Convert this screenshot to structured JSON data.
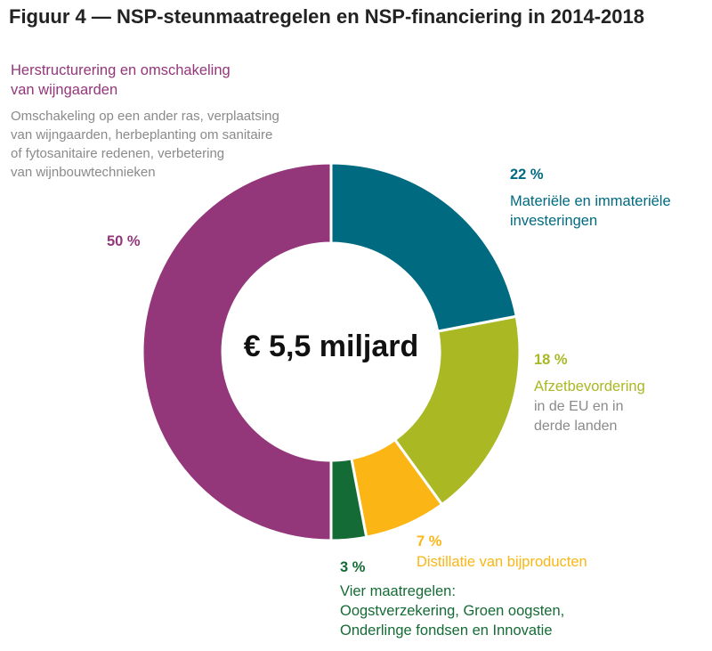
{
  "title": "Figuur 4 — NSP-steunmaatregelen en NSP-financiering in 2014-2018",
  "center_label": "€ 5,5 miljard",
  "colors": {
    "teal": "#006a80",
    "lime": "#a9b823",
    "orange": "#fbb616",
    "darkgreen": "#156b35",
    "purple": "#93367a",
    "grey": "#8a8a8a"
  },
  "chart_data": {
    "type": "pie",
    "donut": true,
    "title": "Figuur 4 — NSP-steunmaatregelen en NSP-financiering in 2014-2018",
    "total_label": "€ 5,5 miljard",
    "slices": [
      {
        "pct_label": "22 %",
        "value": 22,
        "name": "Materiële en immateriële investeringen",
        "name_lines": [
          "Materiële en immateriële",
          "investeringen"
        ],
        "color": "#006a80"
      },
      {
        "pct_label": "18 %",
        "value": 18,
        "name": "Afzetbevordering in de EU en in derde landen",
        "name_lines": [
          "Afzetbevordering"
        ],
        "desc_lines": [
          "in de EU en in",
          "derde landen"
        ],
        "color": "#a9b823"
      },
      {
        "pct_label": "7 %",
        "value": 7,
        "name": "Distillatie van bijproducten",
        "name_lines": [
          "Distillatie van bijproducten"
        ],
        "color": "#fbb616"
      },
      {
        "pct_label": "3 %",
        "value": 3,
        "name": "Vier maatregelen: Oogstverzekering, Groen oogsten, Onderlinge fondsen en Innovatie",
        "name_lines": [
          "Vier maatregelen:",
          "Oogstverzekering, Groen oogsten,",
          "Onderlinge fondsen en Innovatie"
        ],
        "color": "#156b35"
      },
      {
        "pct_label": "50 %",
        "value": 50,
        "name": "Herstructurering en omschakeling van wijngaarden",
        "name_lines": [
          "Herstructurering en omschakeling",
          "van wijngaarden"
        ],
        "desc_lines": [
          "Omschakeling op een ander ras, verplaatsing",
          "van wijngaarden, herbeplanting om sanitaire",
          "of fytosanitaire redenen, verbetering",
          "van wijnbouwtechnieken"
        ],
        "color": "#93367a"
      }
    ]
  }
}
